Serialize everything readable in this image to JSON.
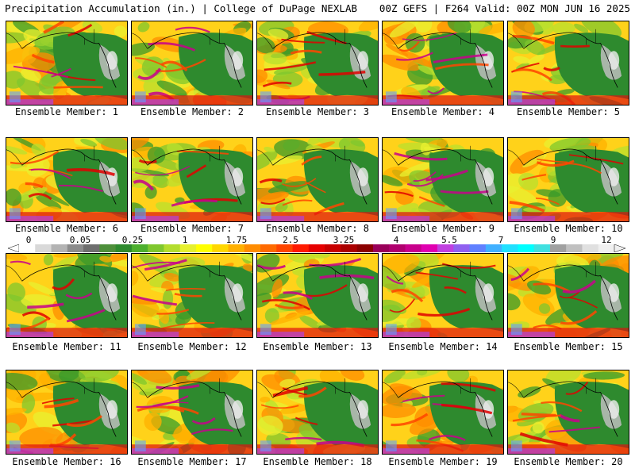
{
  "header": {
    "left": "Precipitation Accumulation (in.) | College of DuPage NEXLAB",
    "right": "00Z GEFS | F264 Valid: 00Z MON JUN 16 2025"
  },
  "colorbar": {
    "labels": [
      "0",
      "0.05",
      "0.25",
      "1",
      "1.75",
      "2.5",
      "3.25",
      "4",
      "5.5",
      "7",
      "9",
      "12"
    ],
    "colors": [
      "#ffffff",
      "#d9d9d9",
      "#b3b3b3",
      "#8c8c8c",
      "#6e6e6e",
      "#4d8f3a",
      "#2e8a2e",
      "#4caf2e",
      "#7fc72e",
      "#b3dd2e",
      "#e6f02e",
      "#ffff00",
      "#ffd700",
      "#ffb000",
      "#ff8c00",
      "#ff6a00",
      "#ff4500",
      "#ff1a00",
      "#e60000",
      "#c80000",
      "#aa0000",
      "#8b0000",
      "#99005a",
      "#b0006e",
      "#c8008c",
      "#e000b0",
      "#c040e0",
      "#9060f0",
      "#6080ff",
      "#40b0ff",
      "#20e0ff",
      "#00ffff",
      "#40e0e0",
      "#a0a0a0",
      "#c0c0c0",
      "#e0e0e0",
      "#f0f0f0"
    ]
  },
  "members": [
    {
      "label": "Ensemble Member: 1"
    },
    {
      "label": "Ensemble Member: 2"
    },
    {
      "label": "Ensemble Member: 3"
    },
    {
      "label": "Ensemble Member: 4"
    },
    {
      "label": "Ensemble Member: 5"
    },
    {
      "label": "Ensemble Member: 6"
    },
    {
      "label": "Ensemble Member: 7"
    },
    {
      "label": "Ensemble Member: 8"
    },
    {
      "label": "Ensemble Member: 9"
    },
    {
      "label": "Ensemble Member: 10"
    },
    {
      "label": "Ensemble Member: 11"
    },
    {
      "label": "Ensemble Member: 12"
    },
    {
      "label": "Ensemble Member: 13"
    },
    {
      "label": "Ensemble Member: 14"
    },
    {
      "label": "Ensemble Member: 15"
    },
    {
      "label": "Ensemble Member: 16"
    },
    {
      "label": "Ensemble Member: 17"
    },
    {
      "label": "Ensemble Member: 18"
    },
    {
      "label": "Ensemble Member: 19"
    },
    {
      "label": "Ensemble Member: 20"
    }
  ]
}
